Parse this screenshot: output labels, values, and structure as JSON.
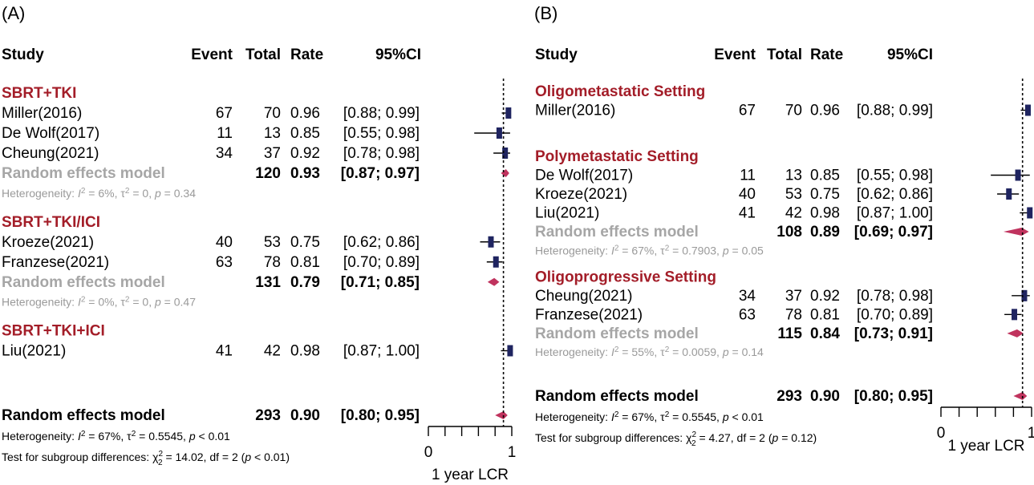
{
  "chart_data": [
    {
      "type": "forest",
      "panel_label": "(A)",
      "columns": [
        "Study",
        "Event",
        "Total",
        "Rate",
        "95%CI"
      ],
      "xlim": [
        0,
        1
      ],
      "x_ticks": [
        "0",
        "1"
      ],
      "xlabel": "1 year LCR",
      "overall_rate": 0.9,
      "groups": [
        {
          "name": "SBRT+TKI",
          "studies": [
            {
              "study": "Miller(2016)",
              "event": "67",
              "total": "70",
              "rate": "0.96",
              "ci": "[0.88; 0.99]",
              "est": 0.96,
              "lo": 0.88,
              "hi": 0.99
            },
            {
              "study": "De Wolf(2017)",
              "event": "11",
              "total": "13",
              "rate": "0.85",
              "ci": "[0.55; 0.98]",
              "est": 0.85,
              "lo": 0.55,
              "hi": 0.98
            },
            {
              "study": "Cheung(2021)",
              "event": "34",
              "total": "37",
              "rate": "0.92",
              "ci": "[0.78; 0.98]",
              "est": 0.92,
              "lo": 0.78,
              "hi": 0.98
            }
          ],
          "model": {
            "label": "Random effects model",
            "total": "120",
            "rate": "0.93",
            "ci": "[0.87; 0.97]",
            "est": 0.93,
            "lo": 0.87,
            "hi": 0.97
          },
          "heterogeneity": {
            "i2": "6%",
            "tau2": "0",
            "p": "0.34"
          }
        },
        {
          "name": "SBRT+TKI/ICI",
          "studies": [
            {
              "study": "Kroeze(2021)",
              "event": "40",
              "total": "53",
              "rate": "0.75",
              "ci": "[0.62; 0.86]",
              "est": 0.75,
              "lo": 0.62,
              "hi": 0.86
            },
            {
              "study": "Franzese(2021)",
              "event": "63",
              "total": "78",
              "rate": "0.81",
              "ci": "[0.70; 0.89]",
              "est": 0.81,
              "lo": 0.7,
              "hi": 0.89
            }
          ],
          "model": {
            "label": "Random effects model",
            "total": "131",
            "rate": "0.79",
            "ci": "[0.71; 0.85]",
            "est": 0.79,
            "lo": 0.71,
            "hi": 0.85
          },
          "heterogeneity": {
            "i2": "0%",
            "tau2": "0",
            "p": "0.47"
          }
        },
        {
          "name": "SBRT+TKI+ICI",
          "studies": [
            {
              "study": "Liu(2021)",
              "event": "41",
              "total": "42",
              "rate": "0.98",
              "ci": "[0.87; 1.00]",
              "est": 0.98,
              "lo": 0.87,
              "hi": 1.0
            }
          ]
        }
      ],
      "overall": {
        "label": "Random effects model",
        "total": "293",
        "rate": "0.90",
        "ci": "[0.80; 0.95]",
        "est": 0.9,
        "lo": 0.8,
        "hi": 0.95
      },
      "overall_heterogeneity": {
        "i2": "67%",
        "tau2": "0.5545",
        "p": "< 0.01"
      },
      "subgroup_test": {
        "chi2": "14.02",
        "df": "2",
        "p": "< 0.01"
      }
    },
    {
      "type": "forest",
      "panel_label": "(B)",
      "columns": [
        "Study",
        "Event",
        "Total",
        "Rate",
        "95%CI"
      ],
      "xlim": [
        0,
        1
      ],
      "x_ticks": [
        "0",
        "1"
      ],
      "xlabel": "1 year LCR",
      "overall_rate": 0.9,
      "groups": [
        {
          "name": "Oligometastatic Setting",
          "studies": [
            {
              "study": "Miller(2016)",
              "event": "67",
              "total": "70",
              "rate": "0.96",
              "ci": "[0.88; 0.99]",
              "est": 0.96,
              "lo": 0.88,
              "hi": 0.99
            }
          ]
        },
        {
          "name": "Polymetastatic Setting",
          "studies": [
            {
              "study": "De Wolf(2017)",
              "event": "11",
              "total": "13",
              "rate": "0.85",
              "ci": "[0.55; 0.98]",
              "est": 0.85,
              "lo": 0.55,
              "hi": 0.98
            },
            {
              "study": "Kroeze(2021)",
              "event": "40",
              "total": "53",
              "rate": "0.75",
              "ci": "[0.62; 0.86]",
              "est": 0.75,
              "lo": 0.62,
              "hi": 0.86
            },
            {
              "study": "Liu(2021)",
              "event": "41",
              "total": "42",
              "rate": "0.98",
              "ci": "[0.87; 1.00]",
              "est": 0.98,
              "lo": 0.87,
              "hi": 1.0
            }
          ],
          "model": {
            "label": "Random effects model",
            "total": "108",
            "rate": "0.89",
            "ci": "[0.69; 0.97]",
            "est": 0.89,
            "lo": 0.69,
            "hi": 0.97
          },
          "heterogeneity": {
            "i2": "67%",
            "tau2": "0.7903",
            "p": "0.05"
          }
        },
        {
          "name": "Oligoprogressive Setting",
          "studies": [
            {
              "study": "Cheung(2021)",
              "event": "34",
              "total": "37",
              "rate": "0.92",
              "ci": "[0.78; 0.98]",
              "est": 0.92,
              "lo": 0.78,
              "hi": 0.98
            },
            {
              "study": "Franzese(2021)",
              "event": "63",
              "total": "78",
              "rate": "0.81",
              "ci": "[0.70; 0.89]",
              "est": 0.81,
              "lo": 0.7,
              "hi": 0.89
            }
          ],
          "model": {
            "label": "Random effects model",
            "total": "115",
            "rate": "0.84",
            "ci": "[0.73; 0.91]",
            "est": 0.84,
            "lo": 0.73,
            "hi": 0.91
          },
          "heterogeneity": {
            "i2": "55%",
            "tau2": "0.0059",
            "p": "0.14"
          }
        }
      ],
      "overall": {
        "label": "Random effects model",
        "total": "293",
        "rate": "0.90",
        "ci": "[0.80; 0.95]",
        "est": 0.9,
        "lo": 0.8,
        "hi": 0.95
      },
      "overall_heterogeneity": {
        "i2": "67%",
        "tau2": "0.5545",
        "p": "< 0.01"
      },
      "subgroup_test": {
        "chi2": "4.27",
        "df": "2",
        "p": "0.12"
      }
    }
  ],
  "colors": {
    "group_heading": "#a31d28",
    "model_label": "#a6a6a6",
    "heterogeneity_text": "#9a9a9a",
    "study_marker": "#1f2460",
    "diamond": "#c0335e"
  }
}
